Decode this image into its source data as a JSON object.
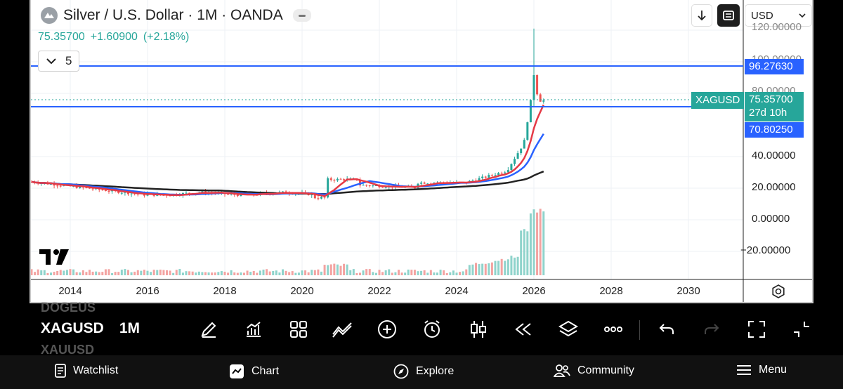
{
  "header": {
    "symbol_title": "Silver / U.S. Dollar · 1M · OANDA",
    "last_price": "75.35700",
    "change_abs": "+1.60900",
    "change_pct": "(+2.18%)",
    "indicator_count": "5",
    "currency": "USD"
  },
  "price_axis": {
    "labels": [
      "40.00000",
      "20.00000",
      "0.00000",
      "−20.00000"
    ],
    "clipped_labels": [
      "120.00000",
      "100.00000",
      "80.00000"
    ]
  },
  "tags": {
    "upper_level": "96.27630",
    "lower_level": "70.80250",
    "symbol": "XAGUSD",
    "current_price": "75.35700",
    "countdown": "27d 10h"
  },
  "time_axis": {
    "labels": [
      "2014",
      "2016",
      "2018",
      "2020",
      "2022",
      "2024",
      "2026",
      "2028",
      "2030"
    ]
  },
  "horizontal_lines": [
    96.2763,
    70.8025
  ],
  "colors": {
    "up": "#26a69a",
    "down": "#ef5350",
    "hline": "#2962ff",
    "ma_fast": "#e53945",
    "ma_mid": "#2962ff",
    "ma_slow": "#222222"
  },
  "toolbar": {
    "symbol": "XAGUSD",
    "interval": "1M",
    "ghost_above": "DOGEUS",
    "ghost_below": "XAUUSD",
    "icons": [
      "draw-icon",
      "indicators-icon",
      "layouts-icon",
      "drawings-icon",
      "add-icon",
      "alert-icon",
      "chart-type-icon",
      "replay-icon",
      "layers-icon",
      "more-icon",
      "undo-icon",
      "redo-icon",
      "fullscreen-icon",
      "collapse-icon"
    ]
  },
  "nav": {
    "watchlist": "Watchlist",
    "chart": "Chart",
    "explore": "Explore",
    "community": "Community",
    "menu": "Menu"
  }
}
